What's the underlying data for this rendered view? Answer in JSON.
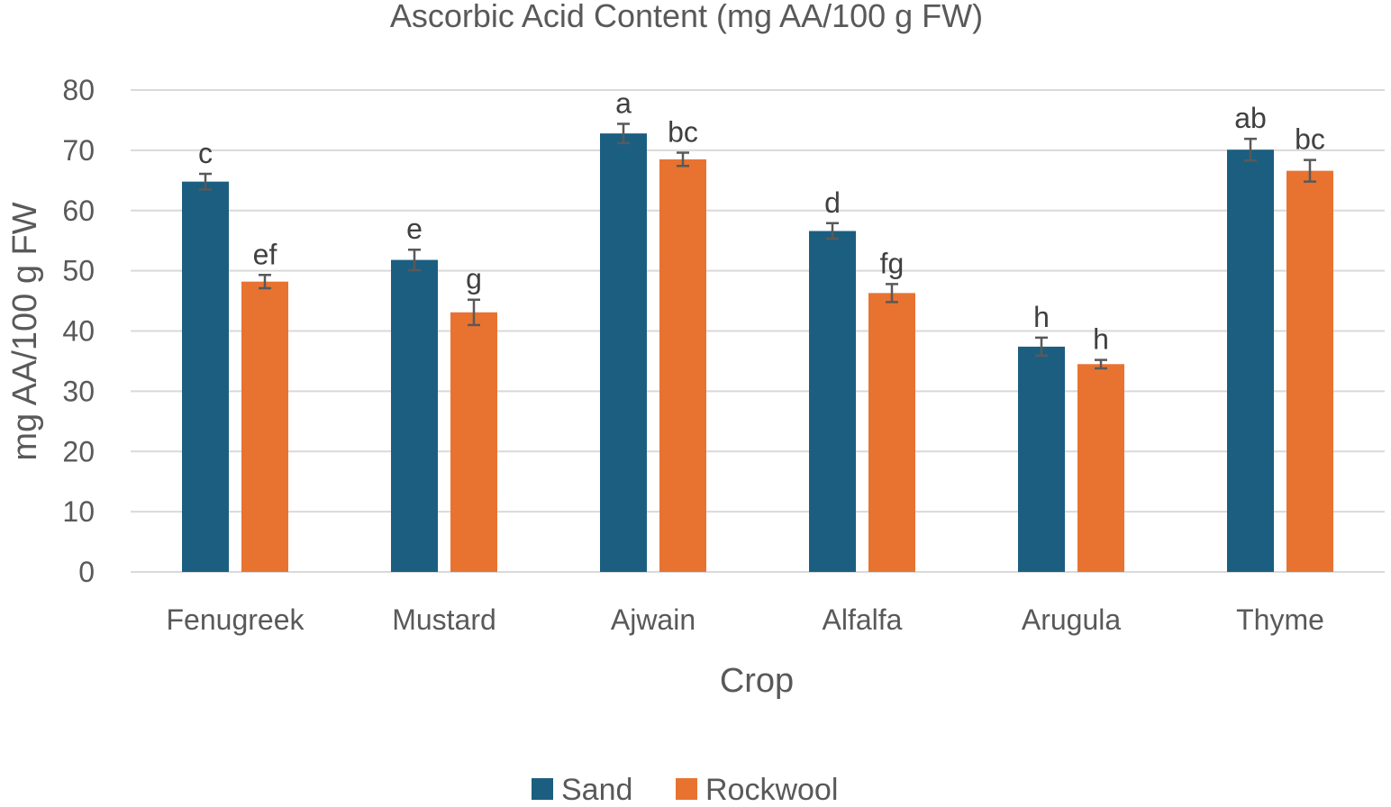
{
  "chart_data": {
    "type": "bar",
    "title": "Ascorbic Acid Content (mg AA/100 g FW)",
    "xlabel": "Crop",
    "ylabel": "mg AA/100 g FW",
    "ylim": [
      0,
      80
    ],
    "yticks": [
      0,
      10,
      20,
      30,
      40,
      50,
      60,
      70,
      80
    ],
    "grid": true,
    "legend_position": "bottom",
    "categories": [
      "Fenugreek",
      "Mustard",
      "Ajwain",
      "Alfalfa",
      "Arugula",
      "Thyme"
    ],
    "series": [
      {
        "name": "Sand",
        "color": "#1b5e80",
        "values": [
          64.8,
          51.8,
          72.8,
          56.6,
          37.4,
          70.1
        ],
        "errors": [
          1.3,
          1.7,
          1.6,
          1.3,
          1.5,
          1.8
        ],
        "labels": [
          "c",
          "e",
          "a",
          "d",
          "h",
          "ab"
        ]
      },
      {
        "name": "Rockwool",
        "color": "#e87331",
        "values": [
          48.2,
          43.1,
          68.5,
          46.3,
          34.5,
          66.6
        ],
        "errors": [
          1.1,
          2.1,
          1.1,
          1.5,
          0.7,
          1.8
        ],
        "labels": [
          "ef",
          "g",
          "bc",
          "fg",
          "h",
          "bc"
        ]
      }
    ]
  }
}
